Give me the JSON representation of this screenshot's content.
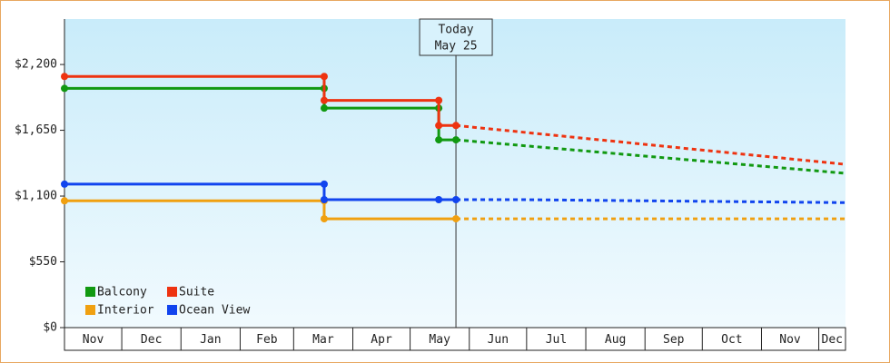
{
  "chart_data": {
    "type": "line",
    "ylim": [
      0,
      2580
    ],
    "yticks": [
      {
        "value": 0,
        "label": "$0"
      },
      {
        "value": 550,
        "label": "$550"
      },
      {
        "value": 1100,
        "label": "$1,100"
      },
      {
        "value": 1650,
        "label": "$1,650"
      },
      {
        "value": 2200,
        "label": "$2,200"
      }
    ],
    "xlim": [
      0,
      409
    ],
    "xticks": [
      {
        "value": 0,
        "label": "Nov"
      },
      {
        "value": 30,
        "label": "Dec"
      },
      {
        "value": 61,
        "label": "Jan"
      },
      {
        "value": 92,
        "label": "Feb"
      },
      {
        "value": 120,
        "label": "Mar"
      },
      {
        "value": 151,
        "label": "Apr"
      },
      {
        "value": 181,
        "label": "May"
      },
      {
        "value": 212,
        "label": "Jun"
      },
      {
        "value": 242,
        "label": "Jul"
      },
      {
        "value": 273,
        "label": "Aug"
      },
      {
        "value": 304,
        "label": "Sep"
      },
      {
        "value": 334,
        "label": "Oct"
      },
      {
        "value": 365,
        "label": "Nov"
      },
      {
        "value": 395,
        "label": "Dec"
      }
    ],
    "annotation": {
      "lines": [
        "Today",
        "May 25"
      ],
      "x": 205
    },
    "series": [
      {
        "name": "Balcony",
        "color": "#119911",
        "x": [
          0,
          136,
          136,
          196,
          196,
          205
        ],
        "values": [
          2000,
          2000,
          1835,
          1835,
          1570,
          1570
        ],
        "forecast": {
          "x": [
            205,
            409
          ],
          "values": [
            1570,
            1290
          ]
        }
      },
      {
        "name": "Suite",
        "color": "#ee3311",
        "x": [
          0,
          136,
          136,
          196,
          196,
          205
        ],
        "values": [
          2100,
          2100,
          1900,
          1900,
          1690,
          1690
        ],
        "forecast": {
          "x": [
            205,
            409
          ],
          "values": [
            1690,
            1365
          ]
        }
      },
      {
        "name": "Interior",
        "color": "#f0a010",
        "x": [
          0,
          136,
          136,
          205
        ],
        "values": [
          1060,
          1060,
          910,
          910
        ],
        "forecast": {
          "x": [
            205,
            409
          ],
          "values": [
            910,
            910
          ]
        }
      },
      {
        "name": "Ocean View",
        "color": "#1144ee",
        "x": [
          0,
          136,
          136,
          196,
          205
        ],
        "values": [
          1200,
          1200,
          1070,
          1070,
          1070
        ],
        "forecast": {
          "x": [
            205,
            239,
            409
          ],
          "values": [
            1070,
            1070,
            1045
          ]
        }
      }
    ]
  }
}
